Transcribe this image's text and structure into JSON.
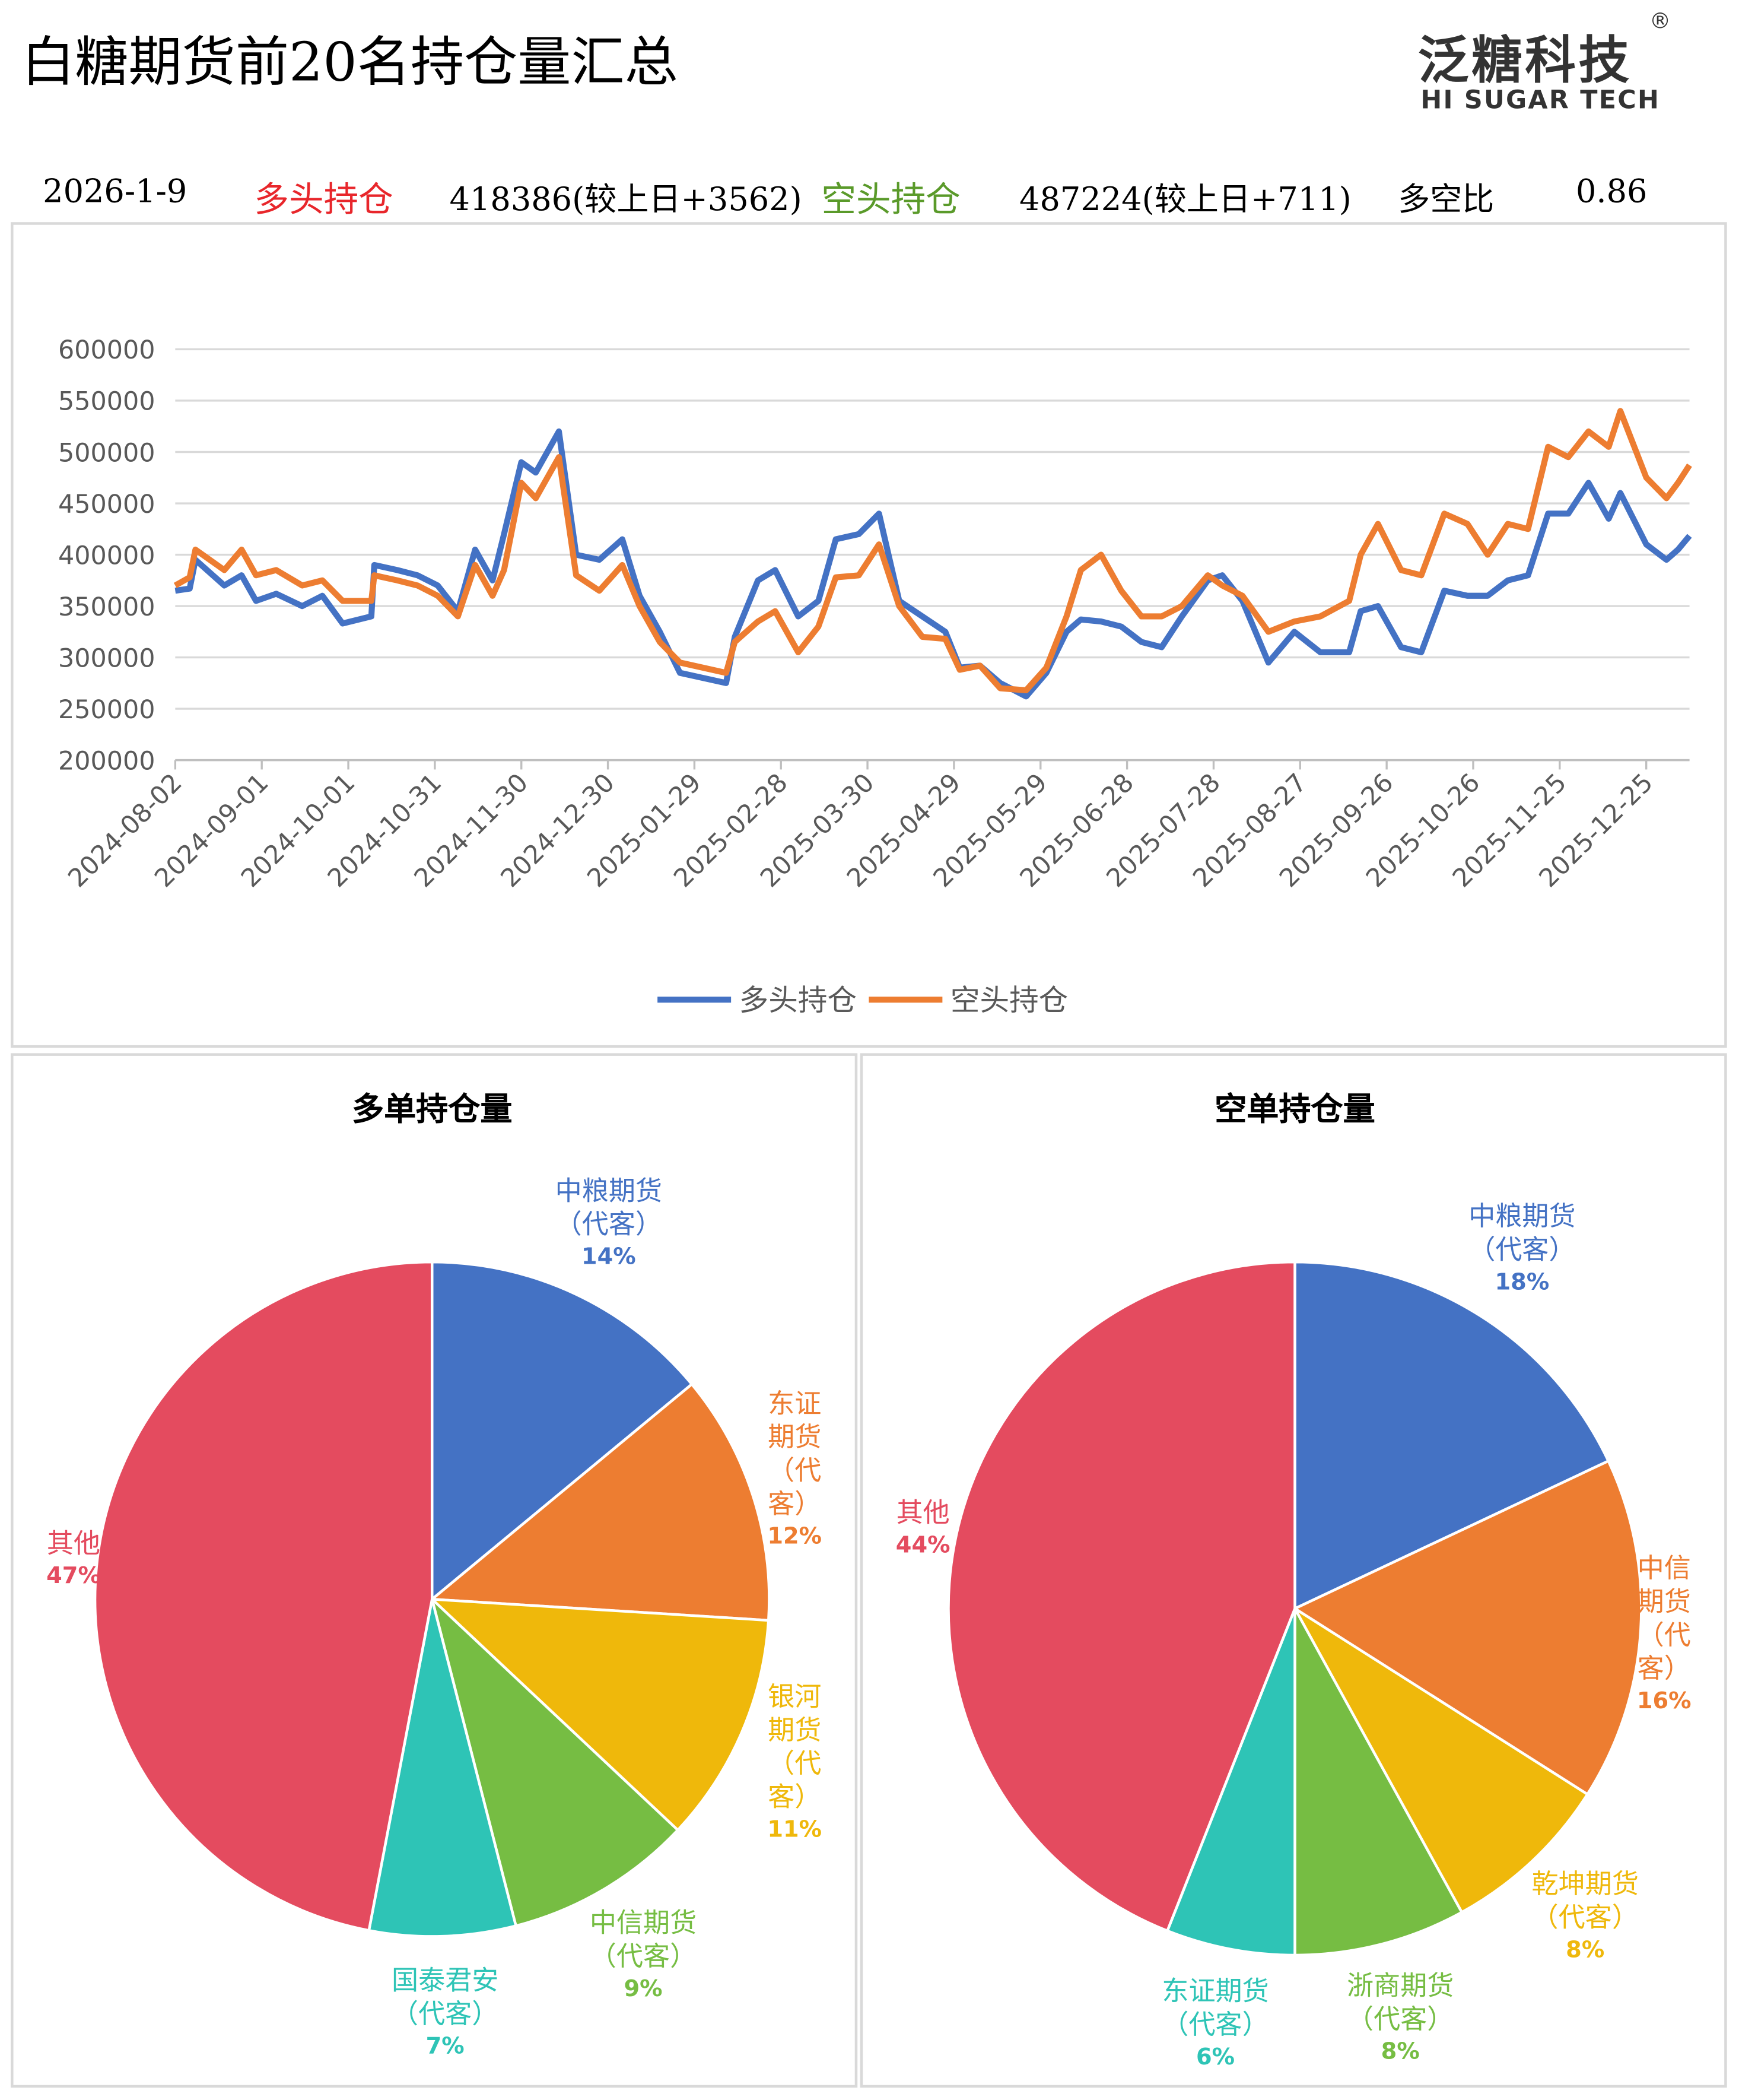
{
  "header": {
    "title": "白糖期货前20名持仓量汇总",
    "logo": "泛糖科技",
    "logo_mark": "®",
    "logo_sub": "HI SUGAR TECH",
    "date": "2026-1-9",
    "long_label": "多头持仓",
    "long_value": "418386(较上日+3562)",
    "short_label": "空头持仓",
    "short_value": "487224(较上日+711)",
    "ratio_label": "多空比",
    "ratio_value": 0.86
  },
  "chart_data": [
    {
      "type": "line",
      "x": [
        "2024-08-02",
        "2024-08-07",
        "2024-08-09",
        "2024-08-19",
        "2024-08-25",
        "2024-08-30",
        "2024-09-06",
        "2024-09-15",
        "2024-09-22",
        "2024-09-29",
        "2024-10-09",
        "2024-10-10",
        "2024-10-18",
        "2024-10-25",
        "2024-11-01",
        "2024-11-08",
        "2024-11-14",
        "2024-11-20",
        "2024-11-24",
        "2024-11-30",
        "2024-12-05",
        "2024-12-13",
        "2024-12-19",
        "2024-12-27",
        "2025-01-04",
        "2025-01-10",
        "2025-01-17",
        "2025-01-24",
        "2025-02-09",
        "2025-02-12",
        "2025-02-20",
        "2025-02-26",
        "2025-03-06",
        "2025-03-13",
        "2025-03-19",
        "2025-03-27",
        "2025-04-03",
        "2025-04-10",
        "2025-04-18",
        "2025-04-26",
        "2025-05-01",
        "2025-05-08",
        "2025-05-15",
        "2025-05-24",
        "2025-05-31",
        "2025-06-07",
        "2025-06-12",
        "2025-06-19",
        "2025-06-26",
        "2025-07-03",
        "2025-07-10",
        "2025-07-17",
        "2025-07-26",
        "2025-07-31",
        "2025-08-07",
        "2025-08-16",
        "2025-08-25",
        "2025-09-03",
        "2025-09-13",
        "2025-09-17",
        "2025-09-23",
        "2025-10-01",
        "2025-10-08",
        "2025-10-16",
        "2025-10-24",
        "2025-10-31",
        "2025-11-07",
        "2025-11-14",
        "2025-11-21",
        "2025-11-28",
        "2025-12-05",
        "2025-12-12",
        "2025-12-16",
        "2025-12-25",
        "2026-01-01",
        "2026-01-05",
        "2026-01-09"
      ],
      "series": [
        {
          "name": "多头持仓",
          "color": "#4472c4",
          "values": [
            365000,
            367000,
            395000,
            370000,
            380000,
            355000,
            362000,
            350000,
            360000,
            333000,
            340000,
            390000,
            385000,
            380000,
            370000,
            345000,
            405000,
            375000,
            420000,
            490000,
            480000,
            520000,
            400000,
            395000,
            415000,
            360000,
            325000,
            285000,
            275000,
            320000,
            375000,
            385000,
            340000,
            355000,
            415000,
            420000,
            440000,
            355000,
            340000,
            325000,
            290000,
            292000,
            275000,
            262000,
            285000,
            325000,
            337000,
            335000,
            330000,
            315000,
            310000,
            340000,
            375000,
            380000,
            355000,
            295000,
            325000,
            305000,
            305000,
            345000,
            350000,
            310000,
            305000,
            365000,
            360000,
            360000,
            375000,
            380000,
            440000,
            440000,
            470000,
            435000,
            460000,
            410000,
            395000,
            405000,
            418386
          ]
        },
        {
          "name": "空头持仓",
          "color": "#ed7d31",
          "values": [
            370000,
            378000,
            405000,
            385000,
            405000,
            380000,
            385000,
            370000,
            375000,
            355000,
            355000,
            380000,
            375000,
            370000,
            360000,
            340000,
            390000,
            360000,
            385000,
            470000,
            455000,
            495000,
            380000,
            365000,
            390000,
            350000,
            315000,
            295000,
            285000,
            315000,
            335000,
            345000,
            305000,
            330000,
            378000,
            380000,
            410000,
            350000,
            320000,
            318000,
            288000,
            292000,
            270000,
            268000,
            290000,
            340000,
            385000,
            400000,
            365000,
            340000,
            340000,
            350000,
            380000,
            370000,
            360000,
            325000,
            335000,
            340000,
            355000,
            400000,
            430000,
            385000,
            380000,
            440000,
            430000,
            400000,
            430000,
            425000,
            505000,
            495000,
            520000,
            505000,
            540000,
            475000,
            455000,
            470000,
            487224
          ]
        }
      ],
      "xlim": [
        "2024-08-02",
        "2026-01-09"
      ],
      "xticks": [
        "2024-08-02",
        "2024-09-01",
        "2024-10-01",
        "2024-10-31",
        "2024-11-30",
        "2024-12-30",
        "2025-01-29",
        "2025-02-28",
        "2025-03-30",
        "2025-04-29",
        "2025-05-29",
        "2025-06-28",
        "2025-07-28",
        "2025-08-27",
        "2025-09-26",
        "2025-10-26",
        "2025-11-25",
        "2025-12-25"
      ],
      "ylim": [
        200000,
        600000
      ],
      "yticks": [
        200000,
        250000,
        300000,
        350000,
        400000,
        450000,
        500000,
        550000,
        600000
      ],
      "grid": true,
      "legend": "bottom"
    },
    {
      "type": "pie",
      "title": "多单持仓量",
      "categories": [
        "中粮期货\n（代客）",
        "东证期货\n（代客）",
        "银河期货\n（代客）",
        "中信期货\n（代客）",
        "国泰君安\n（代客）",
        "其他"
      ],
      "values": [
        14,
        12,
        11,
        9,
        7,
        47
      ],
      "value_labels": [
        "14%",
        "12%",
        "11%",
        "9%",
        "7%",
        "47%"
      ],
      "colors": [
        "#4472c4",
        "#ed7d31",
        "#efb80b",
        "#76bd43",
        "#2ec4b6",
        "#e44b5f"
      ]
    },
    {
      "type": "pie",
      "title": "空单持仓量",
      "categories": [
        "中粮期货\n（代客）",
        "中信期货\n（代客）",
        "乾坤期货\n（代客）",
        "浙商期货\n（代客）",
        "东证期货\n（代客）",
        "其他"
      ],
      "values": [
        18,
        16,
        8,
        8,
        6,
        44
      ],
      "value_labels": [
        "18%",
        "16%",
        "8%",
        "8%",
        "6%",
        "44%"
      ],
      "colors": [
        "#4472c4",
        "#ed7d31",
        "#efb80b",
        "#76bd43",
        "#2ec4b6",
        "#e44b5f"
      ]
    }
  ]
}
